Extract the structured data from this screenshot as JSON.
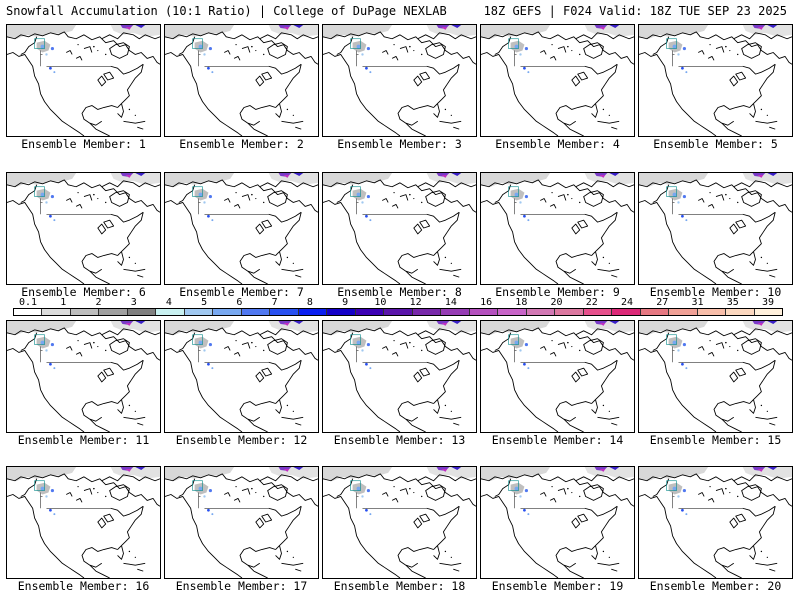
{
  "header": {
    "left": "Snowfall Accumulation (10:1 Ratio) | College of DuPage NEXLAB",
    "right": "18Z GEFS | F024 Valid: 18Z TUE SEP 23 2025"
  },
  "members": [
    "Ensemble Member: 1",
    "Ensemble Member: 2",
    "Ensemble Member: 3",
    "Ensemble Member: 4",
    "Ensemble Member: 5",
    "Ensemble Member: 6",
    "Ensemble Member: 7",
    "Ensemble Member: 8",
    "Ensemble Member: 9",
    "Ensemble Member: 10",
    "Ensemble Member: 11",
    "Ensemble Member: 12",
    "Ensemble Member: 13",
    "Ensemble Member: 14",
    "Ensemble Member: 15",
    "Ensemble Member: 16",
    "Ensemble Member: 17",
    "Ensemble Member: 18",
    "Ensemble Member: 19",
    "Ensemble Member: 20"
  ],
  "colorbar": {
    "labels": [
      "0.1",
      "1",
      "2",
      "3",
      "4",
      "5",
      "6",
      "7",
      "8",
      "9",
      "10",
      "12",
      "14",
      "16",
      "18",
      "20",
      "22",
      "24",
      "27",
      "31",
      "35",
      "39"
    ],
    "colors": [
      "#ffffff",
      "#dcdcdc",
      "#bebebe",
      "#a0a0a0",
      "#808080",
      "#c8f0f0",
      "#a0c8f0",
      "#78a8f0",
      "#5078f0",
      "#2850f0",
      "#0a1ef0",
      "#1400c8",
      "#3c00b4",
      "#5a14aa",
      "#7828aa",
      "#963cb4",
      "#b450be",
      "#c864c8",
      "#d278b4",
      "#dc78a0",
      "#e6508c",
      "#dc2878",
      "#e67882",
      "#f0a096",
      "#f8beaa",
      "#fcd8c0",
      "#fff0dc"
    ]
  }
}
